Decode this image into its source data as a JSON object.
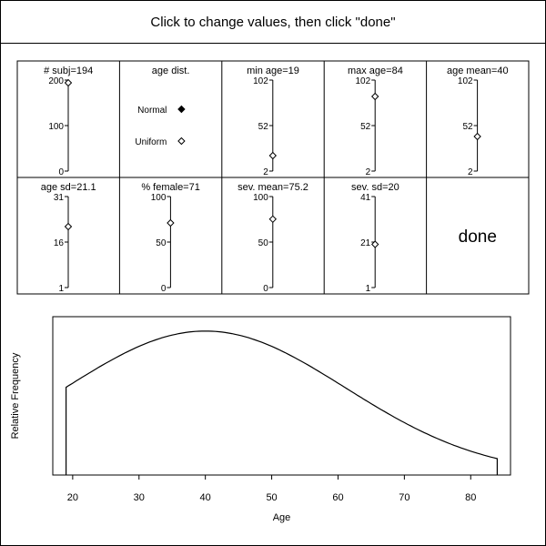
{
  "instruction": "Click to change values, then click \"done\"",
  "panels": [
    {
      "label": "# subj=194",
      "ticks": [
        "200",
        "100",
        "0"
      ],
      "min": 0,
      "max": 200,
      "value": 194
    },
    {
      "label": "age dist.",
      "options": [
        "Normal",
        "Uniform"
      ],
      "selected": "Normal"
    },
    {
      "label": "min age=19",
      "ticks": [
        "102",
        "52",
        "2"
      ],
      "min": 2,
      "max": 102,
      "value": 19
    },
    {
      "label": "max age=84",
      "ticks": [
        "102",
        "52",
        "2"
      ],
      "min": 2,
      "max": 102,
      "value": 84
    },
    {
      "label": "age mean=40",
      "ticks": [
        "102",
        "52",
        "2"
      ],
      "min": 2,
      "max": 102,
      "value": 40
    },
    {
      "label": "age sd=21.1",
      "ticks": [
        "31",
        "16",
        "1"
      ],
      "min": 1,
      "max": 31,
      "value": 21.1
    },
    {
      "label": "% female=71",
      "ticks": [
        "100",
        "50",
        "0"
      ],
      "min": 0,
      "max": 100,
      "value": 71
    },
    {
      "label": "sev. mean=75.2",
      "ticks": [
        "100",
        "50",
        "0"
      ],
      "min": 0,
      "max": 100,
      "value": 75.2
    },
    {
      "label": "sev. sd=20",
      "ticks": [
        "41",
        "21",
        "1"
      ],
      "min": 1,
      "max": 41,
      "value": 20
    }
  ],
  "done_label": "done",
  "chart_data": {
    "type": "line",
    "xlabel": "Age",
    "ylabel": "Relative Frequency",
    "xticks": [
      "20",
      "30",
      "40",
      "50",
      "60",
      "70",
      "80"
    ],
    "xlim": [
      17,
      86
    ],
    "ylim": [
      0,
      1.1
    ],
    "x": [
      19,
      40,
      84
    ],
    "distribution": "normal",
    "mean": 40,
    "sd": 21.1,
    "grid": false,
    "legend": "none"
  }
}
